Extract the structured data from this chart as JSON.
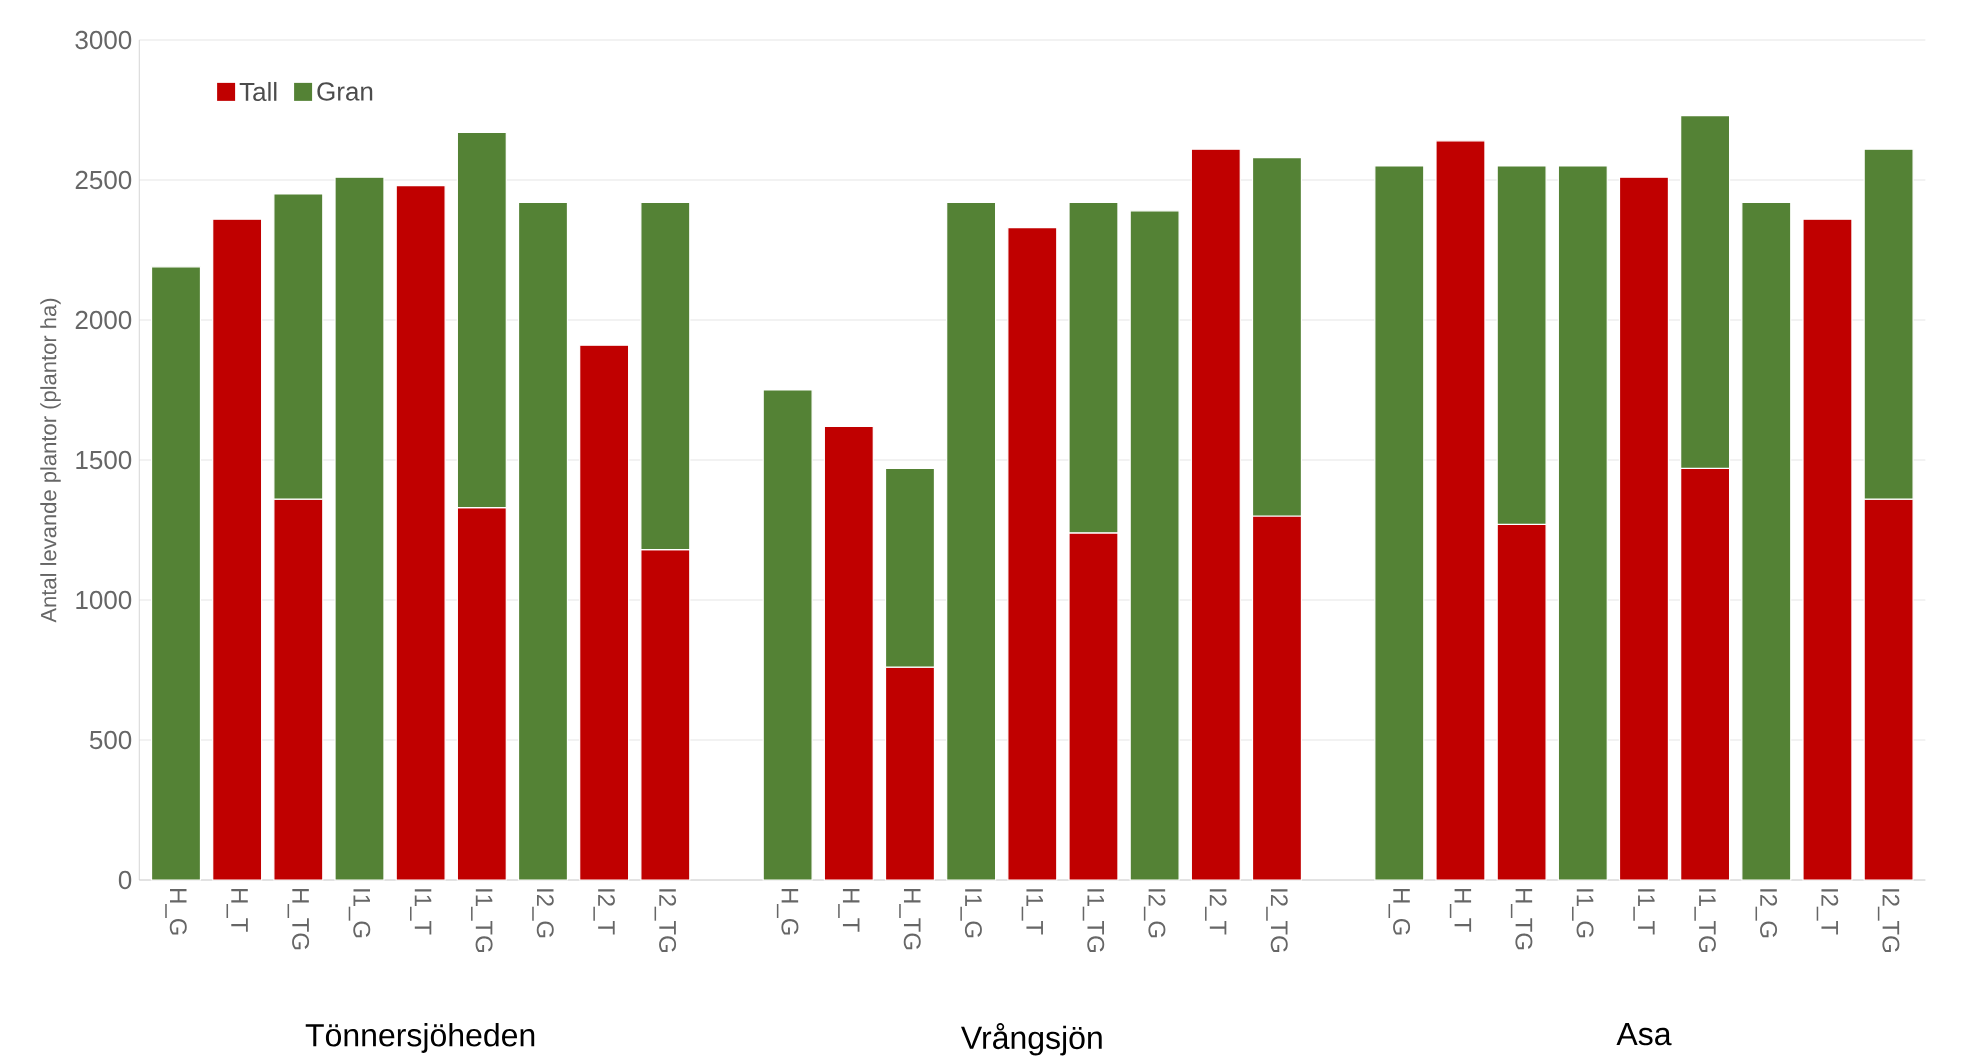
{
  "chart_data": {
    "type": "bar",
    "stacked": true,
    "ylabel": "Antal levande plantor (plantor ha)",
    "categories": [
      "H_G",
      "H_T",
      "H_TG",
      "I1_G",
      "I1_T",
      "I1_TG",
      "I2_G",
      "I2_T",
      "I2_TG",
      null,
      "H_G",
      "H_T",
      "H_TG",
      "I1_G",
      "I1_T",
      "I1_TG",
      "I2_G",
      "I2_T",
      "I2_TG",
      null,
      "H_G",
      "H_T",
      "H_TG",
      "I1_G",
      "I1_T",
      "I1_TG",
      "I2_G",
      "I2_T",
      "I2_TG"
    ],
    "series": [
      {
        "name": "Tall",
        "color": "#c00000",
        "values": [
          null,
          2360,
          1360,
          null,
          2480,
          1330,
          null,
          1910,
          1180,
          null,
          null,
          1620,
          760,
          null,
          2330,
          1240,
          null,
          2610,
          1300,
          null,
          null,
          2640,
          1270,
          null,
          2510,
          1470,
          null,
          2360,
          1360
        ]
      },
      {
        "name": "Gran",
        "color": "#548235",
        "values": [
          2190,
          null,
          1090,
          2510,
          null,
          1340,
          2420,
          null,
          1240,
          null,
          1750,
          null,
          710,
          2420,
          null,
          1180,
          2390,
          null,
          1280,
          null,
          2550,
          null,
          1280,
          2550,
          null,
          1260,
          2420,
          null,
          1250
        ]
      }
    ],
    "ylim": [
      0,
      3000
    ],
    "yticks": [
      0,
      500,
      1000,
      1500,
      2000,
      2500,
      3000
    ],
    "grid": "y",
    "legend": "top left",
    "annotations": [
      "Tönnersjöheden",
      "Vrångsjön",
      "Asa"
    ]
  }
}
